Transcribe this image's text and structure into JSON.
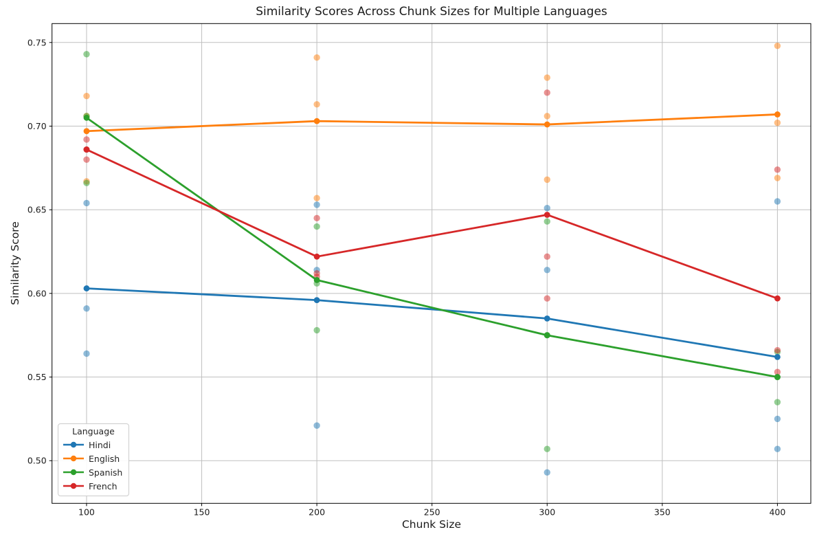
{
  "chart_data": {
    "type": "line",
    "title": "Similarity Scores Across Chunk Sizes for Multiple Languages",
    "xlabel": "Chunk Size",
    "ylabel": "Similarity Score",
    "legend_title": "Language",
    "legend_position": "lower left",
    "grid": true,
    "background": "#ffffff",
    "grid_color": "#bfbfbf",
    "spine_color": "#000000",
    "text_color": "#1a1a1a",
    "x_ticks": [
      100,
      150,
      200,
      250,
      300,
      350,
      400
    ],
    "y_ticks": [
      0.5,
      0.55,
      0.6,
      0.65,
      0.7,
      0.75
    ],
    "xlim": [
      85,
      414.5
    ],
    "ylim": [
      0.4745,
      0.7613
    ],
    "x": [
      100,
      200,
      300,
      400
    ],
    "series": [
      {
        "name": "Hindi",
        "color": "#1f77b4",
        "mean_values": [
          0.603,
          0.596,
          0.585,
          0.562
        ],
        "scatter": [
          [
            0.654,
            0.591,
            0.564
          ],
          [
            0.653,
            0.614,
            0.521
          ],
          [
            0.651,
            0.614,
            0.493
          ],
          [
            0.655,
            0.525,
            0.507
          ]
        ]
      },
      {
        "name": "English",
        "color": "#ff7f0e",
        "mean_values": [
          0.697,
          0.703,
          0.701,
          0.707
        ],
        "scatter": [
          [
            0.718,
            0.706,
            0.667
          ],
          [
            0.741,
            0.713,
            0.657
          ],
          [
            0.729,
            0.706,
            0.668
          ],
          [
            0.748,
            0.702,
            0.669
          ]
        ]
      },
      {
        "name": "Spanish",
        "color": "#2ca02c",
        "mean_values": [
          0.705,
          0.608,
          0.575,
          0.55
        ],
        "scatter": [
          [
            0.743,
            0.706,
            0.666
          ],
          [
            0.64,
            0.606,
            0.578
          ],
          [
            0.643,
            0.575,
            0.507
          ],
          [
            0.565,
            0.55,
            0.535
          ]
        ]
      },
      {
        "name": "French",
        "color": "#d62728",
        "mean_values": [
          0.686,
          0.622,
          0.647,
          0.597
        ],
        "scatter": [
          [
            0.692,
            0.686,
            0.68
          ],
          [
            0.645,
            0.612,
            0.61
          ],
          [
            0.72,
            0.622,
            0.597
          ],
          [
            0.674,
            0.566,
            0.553
          ]
        ]
      }
    ]
  }
}
